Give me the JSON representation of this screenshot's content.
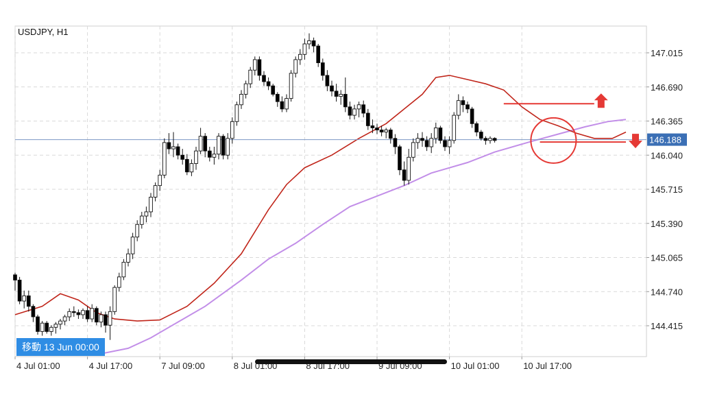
{
  "chart_data": {
    "type": "candlestick",
    "symbol": "USDJPY, H1",
    "title": "USDJPY, H1",
    "y_ticks": [
      "147.015",
      "146.690",
      "146.365",
      "146.040",
      "145.715",
      "145.390",
      "145.065",
      "144.740",
      "144.415"
    ],
    "y_tick_values": [
      147.015,
      146.69,
      146.365,
      146.04,
      145.715,
      145.39,
      145.065,
      144.74,
      144.415
    ],
    "ylim": [
      144.14,
      147.23
    ],
    "x_ticks": [
      "4 Jul 01:00",
      "4 Jul 17:00",
      "7 Jul 09:00",
      "8 Jul 01:00",
      "8 Jul 17:00",
      "9 Jul 09:00",
      "10 Jul 01:00",
      "10 Jul 17:00"
    ],
    "x_tick_index": [
      0,
      16,
      32,
      48,
      64,
      80,
      96,
      112
    ],
    "current_price": "146.188",
    "current_price_value": 146.188,
    "grid": true,
    "colors": {
      "up_candle": "#ffffff",
      "down_candle": "#000000",
      "ma_fast": "#c0251a",
      "ma_slow": "#c28ee8",
      "price_line": "#7b96c4",
      "price_tag": "#3b6fb5",
      "annotation": "#e53935",
      "grid": "#d9d9d9"
    },
    "candles": [
      [
        144.9,
        144.92,
        144.75,
        144.85
      ],
      [
        144.85,
        144.88,
        144.62,
        144.65
      ],
      [
        144.65,
        144.75,
        144.58,
        144.7
      ],
      [
        144.7,
        144.75,
        144.55,
        144.6
      ],
      [
        144.6,
        144.62,
        144.45,
        144.5
      ],
      [
        144.5,
        144.52,
        144.33,
        144.36
      ],
      [
        144.36,
        144.46,
        144.32,
        144.44
      ],
      [
        144.44,
        144.46,
        144.34,
        144.36
      ],
      [
        144.36,
        144.42,
        144.32,
        144.4
      ],
      [
        144.4,
        144.45,
        144.34,
        144.43
      ],
      [
        144.43,
        144.48,
        144.38,
        144.46
      ],
      [
        144.46,
        144.52,
        144.42,
        144.5
      ],
      [
        144.5,
        144.58,
        144.46,
        144.55
      ],
      [
        144.55,
        144.6,
        144.5,
        144.54
      ],
      [
        144.54,
        144.57,
        144.48,
        144.52
      ],
      [
        144.52,
        144.58,
        144.48,
        144.56
      ],
      [
        144.56,
        144.6,
        144.45,
        144.48
      ],
      [
        144.48,
        144.62,
        144.45,
        144.58
      ],
      [
        144.58,
        144.6,
        144.42,
        144.45
      ],
      [
        144.45,
        144.55,
        144.4,
        144.52
      ],
      [
        144.52,
        144.55,
        144.35,
        144.42
      ],
      [
        144.42,
        144.6,
        144.28,
        144.55
      ],
      [
        144.55,
        144.8,
        144.52,
        144.78
      ],
      [
        144.78,
        144.92,
        144.74,
        144.88
      ],
      [
        144.88,
        145.05,
        144.85,
        145.02
      ],
      [
        145.02,
        145.15,
        144.98,
        145.1
      ],
      [
        145.1,
        145.3,
        145.05,
        145.26
      ],
      [
        145.26,
        145.42,
        145.22,
        145.38
      ],
      [
        145.38,
        145.5,
        145.34,
        145.46
      ],
      [
        145.46,
        145.55,
        145.4,
        145.5
      ],
      [
        145.5,
        145.68,
        145.45,
        145.64
      ],
      [
        145.64,
        145.78,
        145.6,
        145.75
      ],
      [
        145.75,
        145.9,
        145.7,
        145.85
      ],
      [
        145.85,
        146.2,
        145.82,
        146.16
      ],
      [
        146.16,
        146.25,
        146.05,
        146.1
      ],
      [
        146.1,
        146.26,
        146.02,
        146.12
      ],
      [
        146.12,
        146.15,
        146.0,
        146.04
      ],
      [
        146.04,
        146.1,
        145.95,
        146.0
      ],
      [
        146.0,
        146.05,
        145.85,
        145.88
      ],
      [
        145.88,
        146.0,
        145.84,
        145.96
      ],
      [
        145.96,
        146.12,
        145.9,
        146.08
      ],
      [
        146.08,
        146.3,
        146.05,
        146.22
      ],
      [
        146.22,
        146.25,
        146.02,
        146.08
      ],
      [
        146.08,
        146.12,
        145.98,
        146.02
      ],
      [
        146.02,
        146.12,
        145.95,
        146.05
      ],
      [
        146.05,
        146.25,
        146.0,
        146.22
      ],
      [
        146.22,
        146.24,
        146.0,
        146.04
      ],
      [
        146.04,
        146.25,
        146.0,
        146.2
      ],
      [
        146.2,
        146.4,
        146.15,
        146.36
      ],
      [
        146.36,
        146.55,
        146.32,
        146.52
      ],
      [
        146.52,
        146.66,
        146.48,
        146.62
      ],
      [
        146.62,
        146.75,
        146.58,
        146.72
      ],
      [
        146.72,
        146.88,
        146.68,
        146.85
      ],
      [
        146.85,
        146.98,
        146.8,
        146.95
      ],
      [
        146.95,
        146.98,
        146.75,
        146.8
      ],
      [
        146.8,
        146.84,
        146.7,
        146.74
      ],
      [
        146.74,
        146.78,
        146.66,
        146.7
      ],
      [
        146.7,
        146.72,
        146.6,
        146.62
      ],
      [
        146.62,
        146.64,
        146.5,
        146.55
      ],
      [
        146.55,
        146.6,
        146.45,
        146.48
      ],
      [
        146.48,
        146.62,
        146.45,
        146.58
      ],
      [
        146.58,
        146.85,
        146.55,
        146.82
      ],
      [
        146.82,
        146.98,
        146.78,
        146.95
      ],
      [
        146.95,
        147.05,
        146.9,
        147.0
      ],
      [
        147.0,
        147.15,
        146.95,
        147.1
      ],
      [
        147.1,
        147.2,
        147.05,
        147.13
      ],
      [
        147.13,
        147.16,
        147.02,
        147.08
      ],
      [
        147.08,
        147.1,
        146.88,
        146.92
      ],
      [
        146.92,
        146.96,
        146.75,
        146.8
      ],
      [
        146.8,
        146.85,
        146.65,
        146.7
      ],
      [
        146.7,
        146.75,
        146.6,
        146.65
      ],
      [
        146.65,
        146.72,
        146.55,
        146.6
      ],
      [
        146.6,
        146.66,
        146.52,
        146.62
      ],
      [
        146.62,
        146.78,
        146.45,
        146.5
      ],
      [
        146.5,
        146.55,
        146.38,
        146.42
      ],
      [
        146.42,
        146.52,
        146.38,
        146.48
      ],
      [
        146.48,
        146.55,
        146.4,
        146.52
      ],
      [
        146.52,
        146.56,
        146.4,
        146.44
      ],
      [
        146.44,
        146.48,
        146.28,
        146.32
      ],
      [
        146.32,
        146.38,
        146.25,
        146.3
      ],
      [
        146.3,
        146.34,
        146.24,
        146.28
      ],
      [
        146.28,
        146.32,
        146.22,
        146.26
      ],
      [
        146.26,
        146.3,
        146.2,
        146.28
      ],
      [
        146.28,
        146.3,
        146.15,
        146.2
      ],
      [
        146.2,
        146.24,
        146.05,
        146.12
      ],
      [
        146.12,
        146.14,
        145.85,
        145.9
      ],
      [
        145.9,
        145.98,
        145.75,
        145.8
      ],
      [
        145.8,
        146.1,
        145.76,
        146.02
      ],
      [
        146.02,
        146.2,
        145.98,
        146.16
      ],
      [
        146.16,
        146.25,
        146.1,
        146.2
      ],
      [
        146.2,
        146.26,
        146.12,
        146.18
      ],
      [
        146.18,
        146.22,
        146.08,
        146.12
      ],
      [
        146.12,
        146.25,
        146.06,
        146.2
      ],
      [
        146.2,
        146.35,
        146.15,
        146.3
      ],
      [
        146.3,
        146.32,
        146.15,
        146.18
      ],
      [
        146.18,
        146.22,
        146.08,
        146.12
      ],
      [
        146.12,
        146.22,
        146.05,
        146.18
      ],
      [
        146.18,
        146.45,
        146.15,
        146.42
      ],
      [
        146.42,
        146.62,
        146.38,
        146.56
      ],
      [
        146.56,
        146.6,
        146.45,
        146.52
      ],
      [
        146.52,
        146.55,
        146.44,
        146.48
      ],
      [
        146.48,
        146.5,
        146.3,
        146.34
      ],
      [
        146.34,
        146.36,
        146.22,
        146.26
      ],
      [
        146.26,
        146.28,
        146.18,
        146.2
      ],
      [
        146.2,
        146.22,
        146.14,
        146.18
      ],
      [
        146.18,
        146.22,
        146.15,
        146.2
      ],
      [
        146.2,
        146.21,
        146.16,
        146.18
      ]
    ],
    "ma_fast": [
      [
        0,
        144.52
      ],
      [
        6,
        144.6
      ],
      [
        10,
        144.72
      ],
      [
        14,
        144.66
      ],
      [
        18,
        144.54
      ],
      [
        22,
        144.48
      ],
      [
        27,
        144.46
      ],
      [
        32,
        144.47
      ],
      [
        38,
        144.6
      ],
      [
        44,
        144.82
      ],
      [
        50,
        145.1
      ],
      [
        56,
        145.52
      ],
      [
        60,
        145.76
      ],
      [
        64,
        145.92
      ],
      [
        70,
        146.04
      ],
      [
        76,
        146.2
      ],
      [
        82,
        146.34
      ],
      [
        86,
        146.48
      ],
      [
        90,
        146.62
      ],
      [
        93,
        146.78
      ],
      [
        96,
        146.8
      ],
      [
        100,
        146.76
      ],
      [
        104,
        146.72
      ],
      [
        108,
        146.66
      ],
      [
        112,
        146.5
      ],
      [
        116,
        146.38
      ],
      [
        120,
        146.32
      ],
      [
        124,
        146.25
      ],
      [
        128,
        146.2
      ],
      [
        132,
        146.2
      ],
      [
        135,
        146.26
      ]
    ],
    "ma_slow": [
      [
        18,
        144.14
      ],
      [
        25,
        144.2
      ],
      [
        30,
        144.3
      ],
      [
        36,
        144.45
      ],
      [
        42,
        144.6
      ],
      [
        50,
        144.85
      ],
      [
        56,
        145.05
      ],
      [
        62,
        145.2
      ],
      [
        68,
        145.38
      ],
      [
        74,
        145.55
      ],
      [
        80,
        145.65
      ],
      [
        86,
        145.75
      ],
      [
        92,
        145.87
      ],
      [
        100,
        145.97
      ],
      [
        106,
        146.07
      ],
      [
        114,
        146.17
      ],
      [
        120,
        146.24
      ],
      [
        126,
        146.31
      ],
      [
        131,
        146.36
      ],
      [
        135,
        146.38
      ]
    ],
    "annotations": {
      "upper_line": {
        "from_index": 108,
        "to_index": 128,
        "value": 146.53
      },
      "lower_line": {
        "from_index": 116,
        "to_index": 135,
        "value": 146.165
      },
      "circle": {
        "center_index": 119,
        "center_value": 146.18,
        "radius": 33
      }
    }
  },
  "nav_badge": {
    "label": "移動 13 Jun 00:00"
  },
  "scroll_indicator": true
}
